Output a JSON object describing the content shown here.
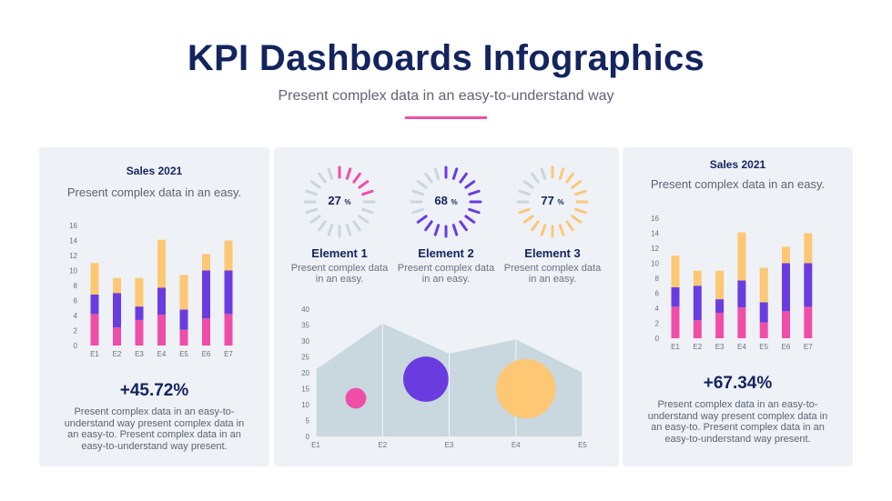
{
  "header": {
    "title": "KPI Dashboards Infographics",
    "subtitle": "Present complex data in an easy-to-understand way"
  },
  "left_panel": {
    "title": "Sales 2021",
    "subtitle": "Present complex data in an easy.",
    "kpi": "+45.72%",
    "description": "Present complex data in an easy-to-understand way present complex data in an easy-to. Present complex data in an easy-to-understand way present."
  },
  "right_panel": {
    "title": "Sales 2021",
    "subtitle": "Present complex data in an easy.",
    "kpi": "+67.34%",
    "description": "Present complex data in an easy-to-understand way present complex data in an easy-to. Present complex data in an easy-to-understand way present."
  },
  "middle_panel": {
    "elements": [
      {
        "name": "Element 1",
        "description": "Present complex data in an easy.",
        "percent": 27,
        "unit": "%",
        "color": "#ef4ea8"
      },
      {
        "name": "Element 2",
        "description": "Present complex data in an easy.",
        "percent": 68,
        "unit": "%",
        "color": "#6a3ce0"
      },
      {
        "name": "Element 3",
        "description": "Present complex data in an easy.",
        "percent": 77,
        "unit": "%",
        "color": "#fdc774"
      }
    ]
  },
  "colors": {
    "pink": "#ef4ea8",
    "purple": "#6a3ce0",
    "yellow": "#fdc774",
    "area": "#c9d7df",
    "ring_inactive": "#c9d7df",
    "title": "#13245e"
  },
  "chart_data": [
    {
      "type": "bar",
      "stacked": true,
      "categories": [
        "E1",
        "E2",
        "E3",
        "E4",
        "E5",
        "E6",
        "E7"
      ],
      "ylim": [
        0,
        16
      ],
      "yticks": [
        0,
        2,
        4,
        6,
        8,
        10,
        12,
        14,
        16
      ],
      "series": [
        {
          "name": "pink",
          "color": "#ef4ea8",
          "values": [
            4.2,
            2.4,
            3.4,
            4.1,
            2.1,
            3.6,
            4.2
          ]
        },
        {
          "name": "purple",
          "color": "#6a3ce0",
          "values": [
            2.6,
            4.6,
            1.8,
            3.6,
            2.7,
            6.4,
            5.8
          ]
        },
        {
          "name": "yellow",
          "color": "#fdc774",
          "values": [
            4.2,
            2.0,
            3.8,
            6.4,
            4.6,
            2.2,
            4.0
          ]
        }
      ]
    },
    {
      "type": "area",
      "x": [
        "E1",
        "E2",
        "E3",
        "E4",
        "E5"
      ],
      "values": [
        21,
        35.5,
        26,
        30.5,
        20
      ],
      "ylim": [
        0,
        40
      ],
      "yticks": [
        0,
        5,
        10,
        15,
        20,
        25,
        30,
        35,
        40
      ],
      "bubbles": [
        {
          "x": 0.6,
          "y": 12,
          "size": 1.6,
          "color": "#ef4ea8"
        },
        {
          "x": 1.65,
          "y": 18,
          "size": 3.5,
          "color": "#6a3ce0"
        },
        {
          "x": 3.15,
          "y": 15,
          "size": 4.6,
          "color": "#fdc774"
        }
      ]
    },
    {
      "type": "bar",
      "stacked": true,
      "categories": [
        "E1",
        "E2",
        "E3",
        "E4",
        "E5",
        "E6",
        "E7"
      ],
      "ylim": [
        0,
        16
      ],
      "yticks": [
        0,
        2,
        4,
        6,
        8,
        10,
        12,
        14,
        16
      ],
      "series": [
        {
          "name": "pink",
          "color": "#ef4ea8",
          "values": [
            4.2,
            2.4,
            3.4,
            4.1,
            2.1,
            3.6,
            4.2
          ]
        },
        {
          "name": "purple",
          "color": "#6a3ce0",
          "values": [
            2.6,
            4.6,
            1.8,
            3.6,
            2.7,
            6.4,
            5.8
          ]
        },
        {
          "name": "yellow",
          "color": "#fdc774",
          "values": [
            4.2,
            2.0,
            3.8,
            6.4,
            4.6,
            2.2,
            4.0
          ]
        }
      ]
    }
  ]
}
